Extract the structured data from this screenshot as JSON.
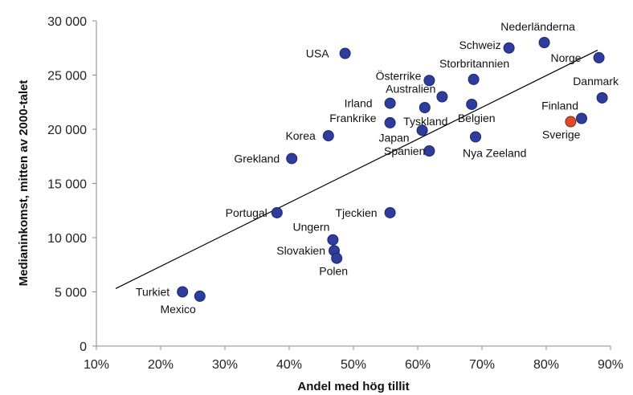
{
  "chart_data": {
    "type": "scatter",
    "title": "",
    "xlabel": "Andel med hög tillit",
    "ylabel": "Medianinkomst, mitten av 2000-talet",
    "xlim": [
      0.1,
      0.9
    ],
    "ylim": [
      0,
      30000
    ],
    "x_ticks": [
      0.1,
      0.2,
      0.3,
      0.4,
      0.5,
      0.6,
      0.7,
      0.8,
      0.9
    ],
    "x_tick_labels": [
      "10%",
      "20%",
      "30%",
      "40%",
      "50%",
      "60%",
      "70%",
      "80%",
      "90%"
    ],
    "y_ticks": [
      0,
      5000,
      10000,
      15000,
      20000,
      25000,
      30000
    ],
    "y_tick_labels": [
      "0",
      "5 000",
      "10 000",
      "15 000",
      "20 000",
      "25 000",
      "30 000"
    ],
    "grid": false,
    "legend": "none",
    "colors": {
      "point": "#2e3c9c",
      "highlight": "#e2492a",
      "trendline": "#000000",
      "axis": "#888888"
    },
    "trendline": {
      "x": [
        0.13,
        0.88
      ],
      "y": [
        5300,
        27300
      ]
    },
    "points": [
      {
        "label": "Nederländerna",
        "x": 0.797,
        "y": 28000,
        "anchor": "middle",
        "dx": -8,
        "dy": -20
      },
      {
        "label": "Schweiz",
        "x": 0.742,
        "y": 27500,
        "anchor": "end",
        "dx": -10,
        "dy": -4
      },
      {
        "label": "USA",
        "x": 0.487,
        "y": 27000,
        "anchor": "end",
        "dx": -20,
        "dy": 0
      },
      {
        "label": "Norge",
        "x": 0.882,
        "y": 26600,
        "anchor": "end",
        "dx": -22,
        "dy": 0
      },
      {
        "label": "Storbritannien",
        "x": 0.687,
        "y": 24600,
        "anchor": "middle",
        "dx": 1,
        "dy": -20
      },
      {
        "label": "Österrike",
        "x": 0.618,
        "y": 24500,
        "anchor": "end",
        "dx": -10,
        "dy": -6
      },
      {
        "label": "Australien",
        "x": 0.638,
        "y": 23000,
        "anchor": "end",
        "dx": -8,
        "dy": -10
      },
      {
        "label": "Danmark",
        "x": 0.887,
        "y": 22900,
        "anchor": "middle",
        "dx": -8,
        "dy": -21
      },
      {
        "label": "Irland",
        "x": 0.557,
        "y": 22400,
        "anchor": "end",
        "dx": -22,
        "dy": 0
      },
      {
        "label": "Tyskland",
        "x": 0.611,
        "y": 22000,
        "anchor": "middle",
        "dx": 1,
        "dy": 17
      },
      {
        "label": "Belgien",
        "x": 0.684,
        "y": 22300,
        "anchor": "middle",
        "dx": 6,
        "dy": 17
      },
      {
        "label": "Finland",
        "x": 0.855,
        "y": 21000,
        "anchor": "end",
        "dx": -4,
        "dy": -16
      },
      {
        "label": "Sverige",
        "x": 0.838,
        "y": 20700,
        "anchor": "end",
        "dx": 12,
        "dy": 16,
        "highlight": true
      },
      {
        "label": "Frankrike",
        "x": 0.557,
        "y": 20600,
        "anchor": "end",
        "dx": -17,
        "dy": -6
      },
      {
        "label": "Japan",
        "x": 0.607,
        "y": 19900,
        "anchor": "end",
        "dx": -16,
        "dy": 9
      },
      {
        "label": "Korea",
        "x": 0.461,
        "y": 19400,
        "anchor": "end",
        "dx": -16,
        "dy": 0
      },
      {
        "label": "Nya Zeeland",
        "x": 0.69,
        "y": 19300,
        "anchor": "start",
        "dx": -16,
        "dy": 20
      },
      {
        "label": "Spanien",
        "x": 0.618,
        "y": 18000,
        "anchor": "end",
        "dx": -5,
        "dy": 0
      },
      {
        "label": "Grekland",
        "x": 0.404,
        "y": 17300,
        "anchor": "end",
        "dx": -15,
        "dy": 0
      },
      {
        "label": "Tjeckien",
        "x": 0.557,
        "y": 12300,
        "anchor": "end",
        "dx": -16,
        "dy": 0
      },
      {
        "label": "Portugal",
        "x": 0.381,
        "y": 12300,
        "anchor": "end",
        "dx": -12,
        "dy": 0
      },
      {
        "label": "Ungern",
        "x": 0.468,
        "y": 9800,
        "anchor": "end",
        "dx": -4,
        "dy": -16
      },
      {
        "label": "Slovakien",
        "x": 0.47,
        "y": 8800,
        "anchor": "end",
        "dx": -11,
        "dy": 0
      },
      {
        "label": "Polen",
        "x": 0.474,
        "y": 8100,
        "anchor": "middle",
        "dx": -4,
        "dy": 16
      },
      {
        "label": "Turkiet",
        "x": 0.234,
        "y": 5000,
        "anchor": "end",
        "dx": -16,
        "dy": 0
      },
      {
        "label": "Mexico",
        "x": 0.261,
        "y": 4600,
        "anchor": "end",
        "dx": -5,
        "dy": 16
      }
    ]
  }
}
